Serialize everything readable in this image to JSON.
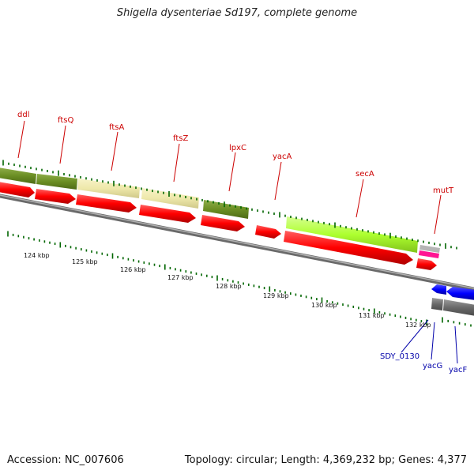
{
  "title": "Shigella dysenteriae Sd197, complete genome",
  "footer": {
    "accession": "Accession: NC_007606",
    "summary": "Topology: circular; Length: 4,369,232 bp; Genes: 4,377"
  },
  "top_labels": [
    "ddl",
    "ftsQ",
    "ftsA",
    "ftsZ",
    "lpxC",
    "yacA",
    "secA",
    "mutT"
  ],
  "bottom_labels": [
    "SDY_0130",
    "yacG",
    "yacF"
  ],
  "kbp_ticks": [
    "124 kbp",
    "125 kbp",
    "126 kbp",
    "127 kbp",
    "128 kbp",
    "129 kbp",
    "130 kbp",
    "131 kbp",
    "132 kbp"
  ],
  "colors": {
    "forward_cds": "#ff0000",
    "reverse_cds": "#0000ff",
    "label_top": "#cc0000",
    "label_bottom": "#0000aa",
    "tick": "#006600",
    "backbone": "#808080",
    "cog_dark_olive": "#6b8e23",
    "cog_khaki": "#eee8aa",
    "cog_light_green": "#adff2f",
    "cog_pink": "#ff1493",
    "cog_grey": "#a9a9a9",
    "cog_dark_grey": "#696969"
  }
}
